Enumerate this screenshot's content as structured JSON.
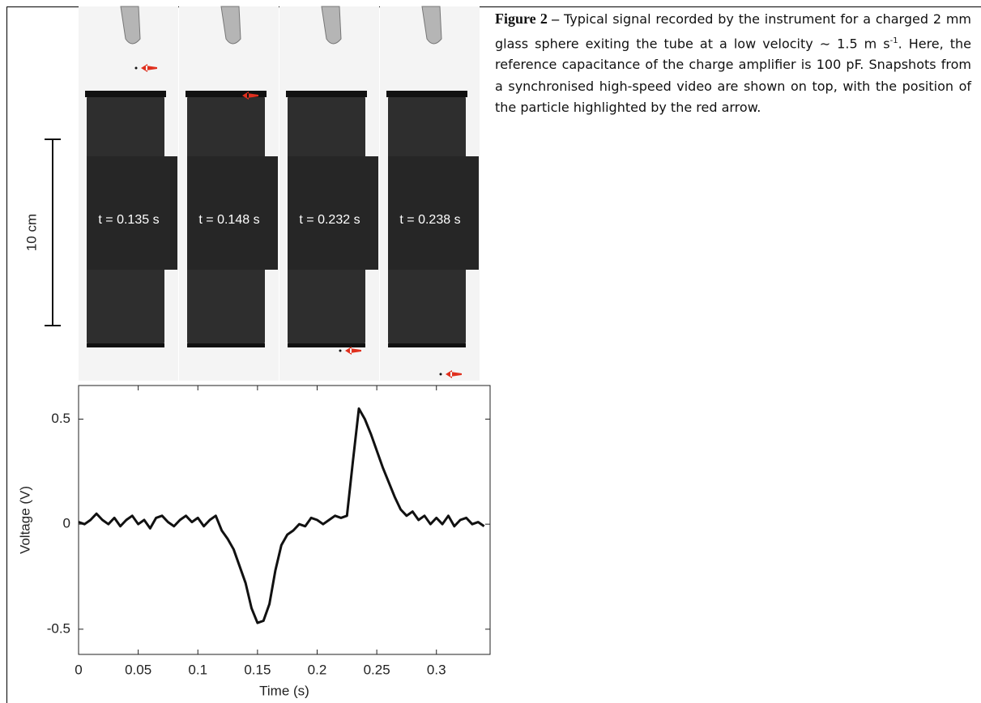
{
  "figure": {
    "snapshots": [
      "t = 0.135 s",
      "t = 0.148 s",
      "t = 0.232 s",
      "t = 0.238 s"
    ],
    "scale_label": "10 cm",
    "caption": {
      "label": "Figure 2 –",
      "text_before": "Typical signal recorded by the instrument for a charged 2 mm glass sphere exiting the tube at a low velocity ∼ 1.5 m s",
      "superscript": "-1",
      "text_after": ". Here, the reference capacitance of the charge amplifier is 100 pF. Snapshots from a synchronised high-speed video are shown on top, with the position of the particle highlighted by the red arrow."
    }
  },
  "chart_data": {
    "type": "line",
    "x_label": "Time (s)",
    "y_label": "Voltage (V)",
    "x": [
      0,
      0.005,
      0.01,
      0.015,
      0.02,
      0.025,
      0.03,
      0.035,
      0.04,
      0.045,
      0.05,
      0.055,
      0.06,
      0.065,
      0.07,
      0.075,
      0.08,
      0.085,
      0.09,
      0.095,
      0.1,
      0.105,
      0.11,
      0.115,
      0.12,
      0.125,
      0.13,
      0.135,
      0.14,
      0.145,
      0.15,
      0.155,
      0.16,
      0.165,
      0.17,
      0.175,
      0.18,
      0.185,
      0.19,
      0.195,
      0.2,
      0.205,
      0.21,
      0.215,
      0.22,
      0.225,
      0.23,
      0.235,
      0.24,
      0.245,
      0.25,
      0.255,
      0.26,
      0.265,
      0.27,
      0.275,
      0.28,
      0.285,
      0.29,
      0.295,
      0.3,
      0.305,
      0.31,
      0.315,
      0.32,
      0.325,
      0.33,
      0.335,
      0.34
    ],
    "series": [
      {
        "color": "#111111",
        "values": [
          0.01,
          0.0,
          0.02,
          0.05,
          0.02,
          0.0,
          0.03,
          -0.01,
          0.02,
          0.04,
          0.0,
          0.02,
          -0.02,
          0.03,
          0.04,
          0.01,
          -0.01,
          0.02,
          0.04,
          0.01,
          0.03,
          -0.01,
          0.02,
          0.04,
          -0.03,
          -0.07,
          -0.12,
          -0.2,
          -0.28,
          -0.4,
          -0.47,
          -0.46,
          -0.38,
          -0.22,
          -0.1,
          -0.05,
          -0.03,
          0.0,
          -0.01,
          0.03,
          0.02,
          0.0,
          0.02,
          0.04,
          0.03,
          0.04,
          0.3,
          0.55,
          0.5,
          0.43,
          0.35,
          0.27,
          0.2,
          0.13,
          0.07,
          0.04,
          0.06,
          0.02,
          0.04,
          0.0,
          0.03,
          0.0,
          0.04,
          -0.01,
          0.02,
          0.03,
          0.0,
          0.01,
          -0.01
        ]
      }
    ],
    "xlim": [
      0,
      0.345
    ],
    "ylim": [
      -0.62,
      0.66
    ],
    "xticks": [
      0,
      0.05,
      0.1,
      0.15,
      0.2,
      0.25,
      0.3
    ],
    "yticks": [
      -0.5,
      0,
      0.5
    ]
  }
}
